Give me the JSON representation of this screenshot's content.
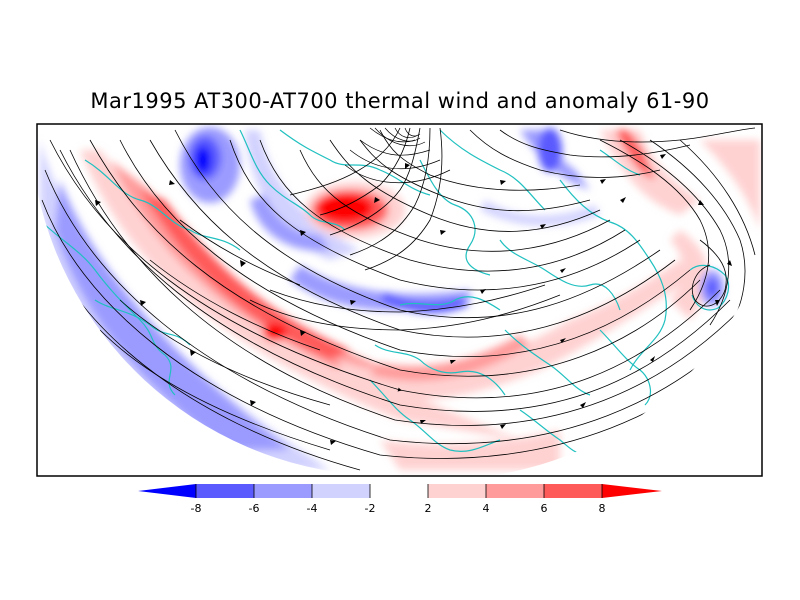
{
  "title": "Mar1995 AT300-AT700 thermal wind and anomaly 61-90",
  "colorbar": {
    "ticks": [
      "-8",
      "-6",
      "-4",
      "-2",
      "2",
      "4",
      "6",
      "8"
    ],
    "colors": [
      "#0000ff",
      "#5a5aff",
      "#9b9bff",
      "#d2d2ff",
      "#ffffff",
      "#ffd2d2",
      "#ff9b9b",
      "#ff5a5a",
      "#ff0000"
    ]
  },
  "map": {
    "projection": "polar-stereographic-north",
    "background": "#ffffff",
    "frame_color": "#000000",
    "coastline_color": "#20c0c0",
    "streamline_color": "#000000",
    "fields": [
      "thermal wind streamlines",
      "anomaly 61-90"
    ]
  }
}
